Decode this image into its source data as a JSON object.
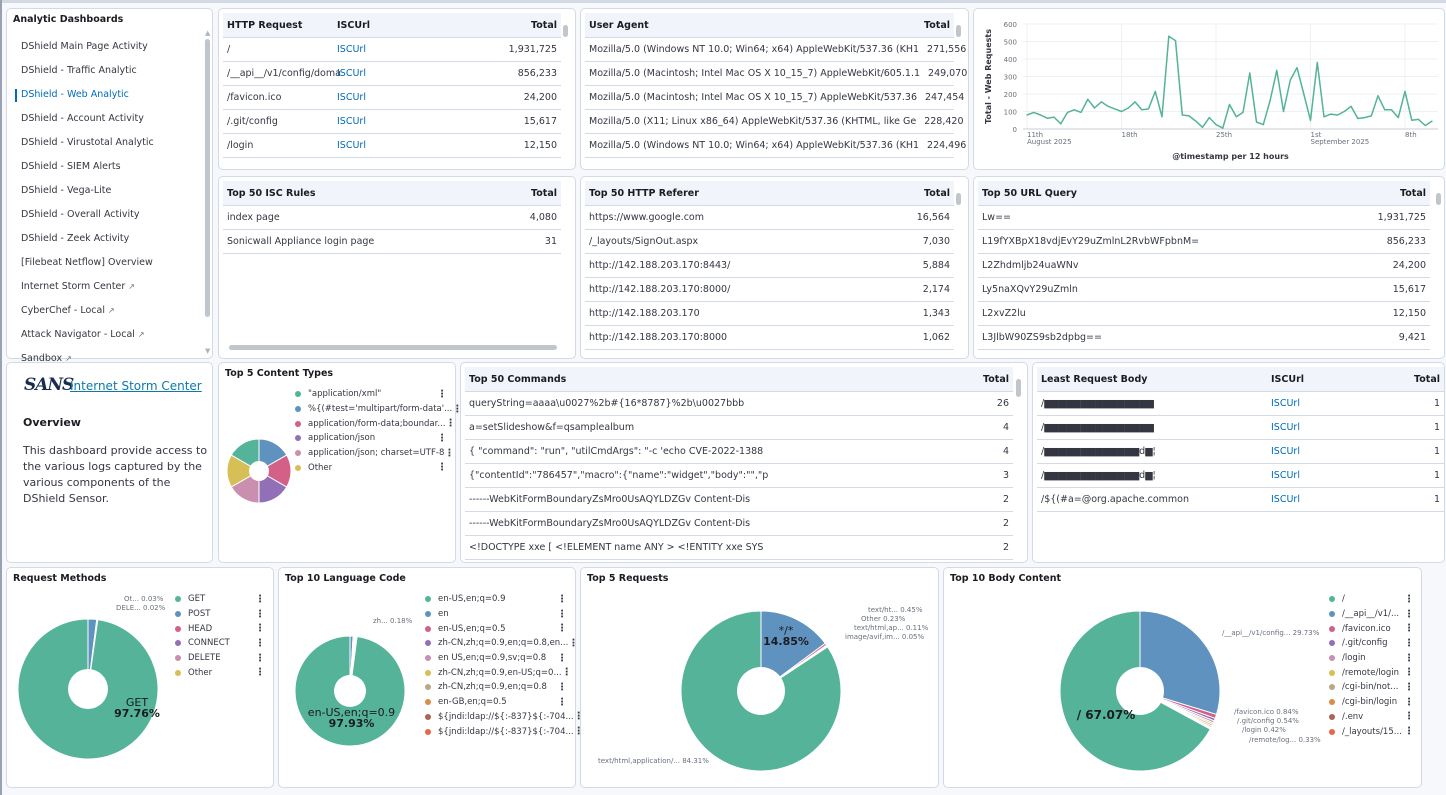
{
  "sidebar": {
    "title": "Analytic Dashboards",
    "items": [
      {
        "label": "DShield Main Page Activity",
        "external": false,
        "active": false
      },
      {
        "label": "DShield - Traffic Analytic",
        "external": false,
        "active": false
      },
      {
        "label": "DShield - Web Analytic",
        "external": false,
        "active": true
      },
      {
        "label": "DShield - Account Activity",
        "external": false,
        "active": false
      },
      {
        "label": "DShield - Virustotal Analytic",
        "external": false,
        "active": false
      },
      {
        "label": "DShield - SIEM Alerts",
        "external": false,
        "active": false
      },
      {
        "label": "DShield - Vega-Lite",
        "external": false,
        "active": false
      },
      {
        "label": "DShield - Overall Activity",
        "external": false,
        "active": false
      },
      {
        "label": "DShield - Zeek Activity",
        "external": false,
        "active": false
      },
      {
        "label": "[Filebeat Netflow] Overview",
        "external": false,
        "active": false
      },
      {
        "label": "Internet Storm Center",
        "external": true,
        "active": false
      },
      {
        "label": "CyberChef - Local",
        "external": true,
        "active": false
      },
      {
        "label": "Attack Navigator - Local",
        "external": true,
        "active": false
      },
      {
        "label": "Sandbox",
        "external": true,
        "active": false
      }
    ],
    "ext_icon": "↗"
  },
  "sans": {
    "logo": "SANS",
    "link": "Internet Storm Center",
    "heading": "Overview",
    "text": "This dashboard provide access to the various logs captured by the various components of the DShield Sensor."
  },
  "tables": {
    "http_request": {
      "headers": [
        "HTTP Request",
        "ISCUrl",
        "Total"
      ],
      "rows": [
        [
          "/",
          "ISCUrl",
          "1,931,725"
        ],
        [
          "/__api__/v1/config/doma",
          "ISCUrl",
          "856,233"
        ],
        [
          "/favicon.ico",
          "ISCUrl",
          "24,200"
        ],
        [
          "/.git/config",
          "ISCUrl",
          "15,617"
        ],
        [
          "/login",
          "ISCUrl",
          "12,150"
        ]
      ]
    },
    "user_agent": {
      "headers": [
        "User Agent",
        "Total"
      ],
      "rows": [
        [
          "Mozilla/5.0 (Windows NT 10.0; Win64; x64) AppleWebKit/537.36 (KH1",
          "271,556"
        ],
        [
          "Mozilla/5.0 (Macintosh; Intel Mac OS X 10_15_7) AppleWebKit/605.1.1",
          "249,070"
        ],
        [
          "Mozilla/5.0 (Macintosh; Intel Mac OS X 10_15_7) AppleWebKit/537.36",
          "247,454"
        ],
        [
          "Mozilla/5.0 (X11; Linux x86_64) AppleWebKit/537.36 (KHTML, like Ge",
          "228,420"
        ],
        [
          "Mozilla/5.0 (Windows NT 10.0; Win64; x64) AppleWebKit/537.36 (KH1",
          "224,496"
        ]
      ]
    },
    "isc_rules": {
      "headers": [
        "Top 50 ISC Rules",
        "Total"
      ],
      "rows": [
        [
          "index page",
          "4,080"
        ],
        [
          "Sonicwall Appliance login page",
          "31"
        ]
      ]
    },
    "http_referer": {
      "headers": [
        "Top 50 HTTP Referer",
        "Total"
      ],
      "rows": [
        [
          "https://www.google.com",
          "16,564"
        ],
        [
          "/_layouts/SignOut.aspx",
          "7,030"
        ],
        [
          "http://142.188.203.170:8443/",
          "5,884"
        ],
        [
          "http://142.188.203.170:8000/",
          "2,174"
        ],
        [
          "http://142.188.203.170",
          "1,343"
        ],
        [
          "http://142.188.203.170:8000",
          "1,062"
        ]
      ]
    },
    "url_query": {
      "headers": [
        "Top 50 URL Query",
        "Total"
      ],
      "rows": [
        [
          "Lw==",
          "1,931,725"
        ],
        [
          "L19fYXBpX18vdjEvY29uZmlnL2RvbWFpbnM=",
          "856,233"
        ],
        [
          "L2Zhdmljb24uaWNv",
          "24,200"
        ],
        [
          "Ly5naXQvY29uZmln",
          "15,617"
        ],
        [
          "L2xvZ2lu",
          "12,150"
        ],
        [
          "L3JlbW90ZS9sb2dpbg==",
          "9,421"
        ]
      ]
    },
    "commands": {
      "headers": [
        "Top 50 Commands",
        "Total"
      ],
      "rows": [
        [
          "queryString=aaaa\\u0027%2b#{16*8787}%2b\\u0027bbb",
          "26"
        ],
        [
          "a=setSlideshow&f=qsamplealbum",
          "4"
        ],
        [
          "{ \"command\": \"run\", \"utilCmdArgs\": \"-c 'echo CVE-2022-1388",
          "4"
        ],
        [
          "{\"contentId\":\"786457\",\"macro\":{\"name\":\"widget\",\"body\":\"\",\"p",
          "3"
        ],
        [
          "------WebKitFormBoundaryZsMro0UsAQYLDZGv Content-Dis",
          "2"
        ],
        [
          "------WebKitFormBoundaryZsMro0UsAQYLDZGv Content-Dis",
          "2"
        ],
        [
          "<!DOCTYPE xxe [ <!ELEMENT name ANY > <!ENTITY xxe SYS",
          "2"
        ]
      ]
    },
    "least_body": {
      "headers": [
        "Least Request Body",
        "ISCUrl",
        "Total"
      ],
      "rows": [
        [
          "/▆▆▆▆▆▆▆▆▆▆▆▆▆▆▆",
          "ISCUrl",
          "1"
        ],
        [
          "/▆▆▆▆▆▆▆▆▆▆▆▆▆▆▆",
          "ISCUrl",
          "1"
        ],
        [
          "/▆▆▆▆▆▆▆▆▆▆▆▆▆d▆¦",
          "ISCUrl",
          "1"
        ],
        [
          "/▆▆▆▆▆▆▆▆▆▆▆▆▆d▆¦",
          "ISCUrl",
          "1"
        ],
        [
          "/${(#a=@org.apache.common",
          "ISCUrl",
          "1"
        ]
      ]
    }
  },
  "colors": {
    "accent": "#006bb8",
    "line": "#54b399",
    "palette": [
      "#54b399",
      "#6092c0",
      "#d36086",
      "#9170b8",
      "#ca8eae",
      "#d6bf57",
      "#b9a888",
      "#da8b45",
      "#aa6556",
      "#e7664c"
    ]
  },
  "chart_data": [
    {
      "type": "line",
      "title": "",
      "ylabel": "Total - Web Requests",
      "xlabel": "@timestamp per 12 hours",
      "ylim": [
        0,
        600
      ],
      "yticks": [
        0,
        100,
        200,
        300,
        400,
        500,
        600
      ],
      "xticks": [
        {
          "label": "11th",
          "sub": "August 2025",
          "index": 0
        },
        {
          "label": "18th",
          "sub": "",
          "index": 14
        },
        {
          "label": "25th",
          "sub": "",
          "index": 28
        },
        {
          "label": "1st",
          "sub": "September 2025",
          "index": 42
        },
        {
          "label": "8th",
          "sub": "",
          "index": 56
        }
      ],
      "values": [
        80,
        95,
        80,
        62,
        68,
        30,
        95,
        110,
        95,
        170,
        120,
        155,
        130,
        115,
        100,
        120,
        155,
        110,
        115,
        215,
        70,
        530,
        505,
        80,
        75,
        45,
        10,
        65,
        25,
        5,
        140,
        70,
        95,
        320,
        40,
        25,
        160,
        335,
        100,
        280,
        350,
        200,
        50,
        380,
        70,
        85,
        80,
        100,
        130,
        60,
        65,
        75,
        190,
        110,
        110,
        65,
        215,
        50,
        55,
        20,
        45
      ]
    },
    {
      "type": "pie",
      "title": "Top 5 Content Types",
      "labels": [
        "\"application/xml\"",
        "%{(#test='multipart/form-data'...",
        "application/form-data;boundar...",
        "application/json",
        "application/json; charset=UTF-8",
        "Other"
      ],
      "values": [
        16.67,
        16.67,
        16.67,
        16.67,
        16.66,
        16.66
      ]
    },
    {
      "type": "pie",
      "title": "Request Methods",
      "labels": [
        "GET",
        "POST",
        "HEAD",
        "CONNECT",
        "DELETE",
        "Other"
      ],
      "values": [
        97.76,
        2.0,
        0.12,
        0.07,
        0.02,
        0.03
      ],
      "center_label": "GET",
      "center_value": "97.76%",
      "callouts": [
        "Ot...  0.03%",
        "DELE...  0.02%"
      ]
    },
    {
      "type": "pie",
      "title": "Top 10 Language Code",
      "labels": [
        "en-US,en;q=0.9",
        "en",
        "en-US,en;q=0.5",
        "zh-CN,zh;q=0.9,en;q=0.8,en...",
        "en US,en;q=0.9,sv;q=0.8",
        "zh-CN,zh;q=0.9,en-US;q=0...",
        "zh-CN,zh;q=0.9,en;q=0.8",
        "en-GB,en;q=0.5",
        "${jndi:ldap://${:-837}${:-704...",
        "${jndi:ldap://${:-837}${:-704..."
      ],
      "values": [
        97.93,
        0.9,
        0.35,
        0.18,
        0.15,
        0.14,
        0.12,
        0.1,
        0.08,
        0.05
      ],
      "center_label": "en-US,en;q=0.9",
      "center_value": "97.93%",
      "callouts": [
        "zh...  0.18%"
      ]
    },
    {
      "type": "pie",
      "title": "Top 5 Requests",
      "labels": [
        "text/html,application/...",
        "*/*",
        "text/ht...",
        "text/html,ap...",
        "image/avif,im...",
        "Other"
      ],
      "values": [
        84.31,
        14.85,
        0.45,
        0.11,
        0.05,
        0.23
      ],
      "center_label": "*/*",
      "center_value": "14.85%",
      "callouts": [
        "text/ht...  0.45%",
        "Other  0.23%",
        "text/html,ap...  0.11%",
        "image/avif,im...  0.05%",
        "text/html,application/...  84.31%"
      ]
    },
    {
      "type": "pie",
      "title": "Top 10 Body Content",
      "labels": [
        "/",
        "/__api__/v1/...",
        "/favicon.ico",
        "/.git/config",
        "/login",
        "/remote/login",
        "/cgi-bin/not...",
        "/cgi-bin/login",
        "/.env",
        "/_layouts/15..."
      ],
      "values": [
        67.07,
        29.73,
        0.84,
        0.54,
        0.42,
        0.33,
        0.35,
        0.3,
        0.22,
        0.2
      ],
      "center_label": "/ 67.07%",
      "callouts": [
        "/__api__/v1/config...  29.73%",
        "/favicon.ico  0.84%",
        "/.git/config  0.54%",
        "/login  0.42%",
        "/remote/log...  0.33%"
      ]
    }
  ]
}
